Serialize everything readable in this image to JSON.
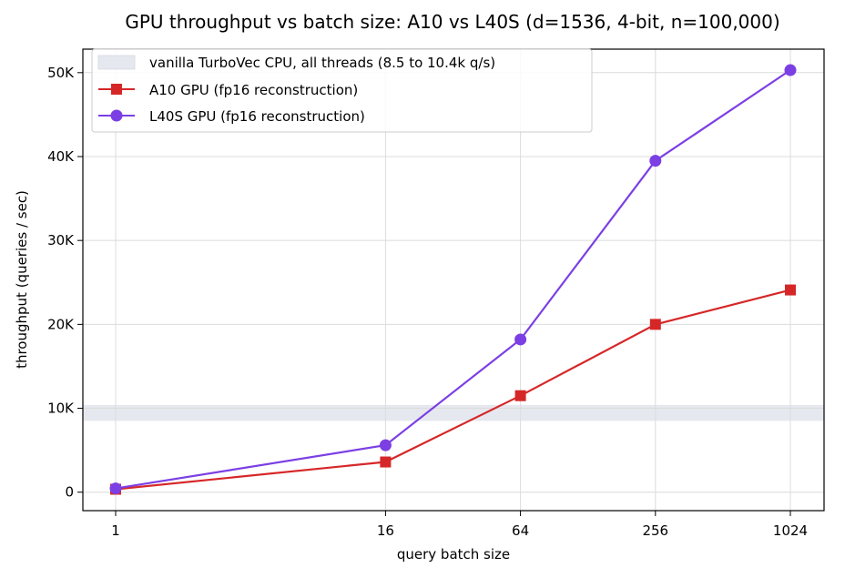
{
  "chart_data": {
    "type": "line",
    "title": "GPU throughput vs batch size: A10 vs L40S (d=1536, 4-bit, n=100,000)",
    "xlabel": "query batch size",
    "ylabel": "throughput (queries / sec)",
    "x_scale": "log2",
    "x": [
      1,
      16,
      64,
      256,
      1024
    ],
    "x_tick_labels": [
      "1",
      "16",
      "64",
      "256",
      "1024"
    ],
    "ylim": [
      -2200,
      52800
    ],
    "y_ticks": [
      0,
      10000,
      20000,
      30000,
      40000,
      50000
    ],
    "y_tick_labels": [
      "0",
      "10K",
      "20K",
      "30K",
      "40K",
      "50K"
    ],
    "grid": true,
    "legend_position": "top-left",
    "band": {
      "name": "vanilla TurboVec CPU, all threads (8.5 to 10.4k q/s)",
      "y_min": 8500,
      "y_max": 10400,
      "color": "#e6e8ef"
    },
    "series": [
      {
        "name": "A10 GPU (fp16 reconstruction)",
        "marker": "square",
        "color": "#d62728",
        "values": [
          350,
          3600,
          11500,
          20000,
          24100
        ]
      },
      {
        "name": "L40S GPU (fp16 reconstruction)",
        "marker": "circle",
        "color": "#7b3fe4",
        "values": [
          450,
          5600,
          18200,
          39500,
          50300
        ]
      }
    ]
  }
}
